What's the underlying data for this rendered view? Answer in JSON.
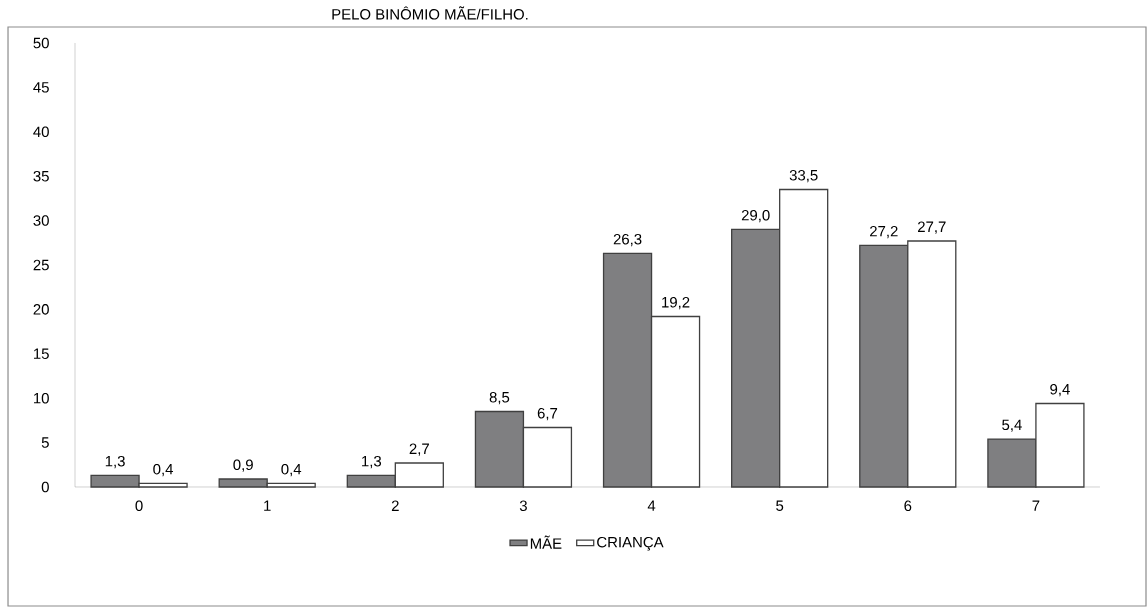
{
  "chart_data": {
    "type": "bar",
    "title": "PELO BINÔMIO MÃE/FILHO.",
    "categories": [
      "0",
      "1",
      "2",
      "3",
      "4",
      "5",
      "6",
      "7"
    ],
    "series": [
      {
        "name": "MÃE",
        "color": "#7f7f81",
        "values": [
          1.3,
          0.9,
          1.3,
          8.5,
          26.3,
          29.0,
          27.2,
          5.4
        ],
        "value_labels": [
          "1,3",
          "0,9",
          "1,3",
          "8,5",
          "26,3",
          "29,0",
          "27,2",
          "5,4"
        ]
      },
      {
        "name": "CRIANÇA",
        "color": "#ffffff",
        "values": [
          0.4,
          0.4,
          2.7,
          6.7,
          19.2,
          33.5,
          27.7,
          9.4
        ],
        "value_labels": [
          "0,4",
          "0,4",
          "2,7",
          "6,7",
          "19,2",
          "33,5",
          "27,7",
          "9,4"
        ]
      }
    ],
    "ylim": [
      0,
      50
    ],
    "yticks": [
      0,
      5,
      10,
      15,
      20,
      25,
      30,
      35,
      40,
      45,
      50
    ],
    "legend": "bottom"
  }
}
